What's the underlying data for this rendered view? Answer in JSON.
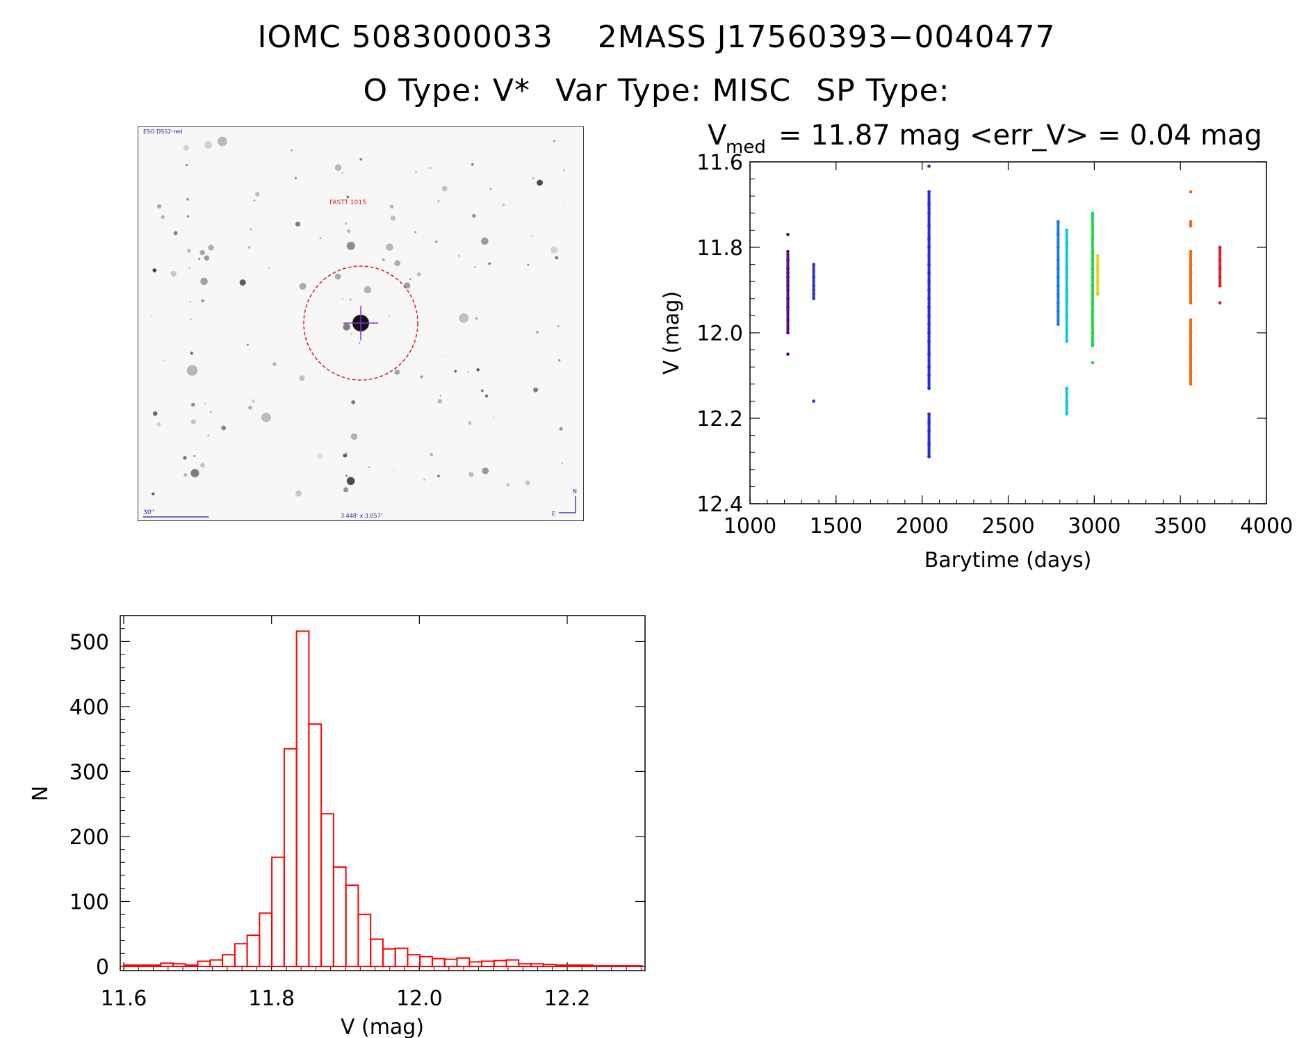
{
  "header": {
    "line1_a": "IOMC 5083000033",
    "line1_b": "2MASS J17560393−0040477",
    "line2_a": "O Type: V*",
    "line2_b": "Var Type: MISC",
    "line2_c": "SP Type:"
  },
  "finder": {
    "survey_label": "ESO DSS2-red",
    "target_label": "FASTT 1015",
    "scale_label": "30\"",
    "fov_label": "3.448' x 3.057'",
    "north_label": "N",
    "east_label": "E",
    "colors": {
      "circle": "#cc2222",
      "crosshair": "#8a2be2",
      "text_blue": "#1a1aa0",
      "text_red": "#cc2222"
    }
  },
  "chart_data": [
    {
      "type": "scatter",
      "title_v": "V",
      "title_sub": "med",
      "title_rest": "= 11.87 mag <err_V> = 0.04 mag",
      "xlabel": "Barytime (days)",
      "ylabel": "V (mag)",
      "xlim": [
        1000,
        4000
      ],
      "ylim": [
        12.4,
        11.6
      ],
      "y_inverted": true,
      "xticks": [
        "1000",
        "1500",
        "2000",
        "2500",
        "3000",
        "3500",
        "4000"
      ],
      "yticks": [
        "11.6",
        "11.8",
        "12.0",
        "12.2",
        "12.4"
      ],
      "series": [
        {
          "color": "#5b0a7a",
          "x": 1220,
          "points": [
            11.77,
            11.81,
            11.83,
            11.85,
            11.86,
            11.87,
            11.88,
            11.89,
            11.9,
            11.92,
            11.94,
            11.97,
            12.0,
            12.05
          ]
        },
        {
          "color": "#3434c8",
          "x": 1370,
          "points": [
            11.84,
            11.87,
            11.89,
            11.9,
            11.91,
            11.92,
            12.16
          ]
        },
        {
          "color": "#1f2fe0",
          "x": 2040,
          "points": [
            11.61,
            11.67,
            11.7,
            11.72,
            11.75,
            11.78,
            11.8,
            11.82,
            11.84,
            11.86,
            11.88,
            11.9,
            11.92,
            11.94,
            11.96,
            11.98,
            12.0,
            12.02,
            12.05,
            12.08,
            12.1,
            12.13,
            12.19,
            12.21,
            12.23,
            12.26,
            12.29
          ]
        },
        {
          "color": "#1e78e8",
          "x": 2790,
          "points": [
            11.74,
            11.77,
            11.8,
            11.83,
            11.85,
            11.87,
            11.89,
            11.91,
            11.93,
            11.95,
            11.98
          ]
        },
        {
          "color": "#12c8e0",
          "x": 2840,
          "points": [
            11.76,
            11.79,
            11.82,
            11.85,
            11.87,
            11.9,
            11.93,
            11.96,
            11.99,
            12.02,
            12.13,
            12.16,
            12.19
          ]
        },
        {
          "color": "#22d84a",
          "x": 2990,
          "points": [
            11.72,
            11.75,
            11.78,
            11.81,
            11.83,
            11.85,
            11.87,
            11.89,
            11.91,
            11.93,
            11.95,
            11.97,
            12.0,
            12.03,
            12.07
          ]
        },
        {
          "color": "#d8d822",
          "x": 3020,
          "points": [
            11.82,
            11.85,
            11.88,
            11.91
          ]
        },
        {
          "color": "#f26a10",
          "x": 3560,
          "points": [
            11.67,
            11.74,
            11.75,
            11.81,
            11.84,
            11.86,
            11.88,
            11.9,
            11.93,
            11.97,
            12.0,
            12.03,
            12.06,
            12.09,
            12.12
          ]
        },
        {
          "color": "#e02020",
          "x": 3730,
          "points": [
            11.8,
            11.83,
            11.85,
            11.87,
            11.89,
            11.93
          ]
        }
      ]
    },
    {
      "type": "bar",
      "xlabel": "V (mag)",
      "ylabel": "N",
      "xlim": [
        11.6,
        12.31
      ],
      "ylim": [
        0,
        540
      ],
      "xticks": [
        "11.6",
        "11.8",
        "12.0",
        "12.2"
      ],
      "yticks": [
        "0",
        "100",
        "200",
        "300",
        "400",
        "500"
      ],
      "bin_width": 0.0167,
      "bin_start": 11.6,
      "color": "#ff0000",
      "values": [
        2,
        2,
        2,
        5,
        4,
        2,
        8,
        10,
        18,
        35,
        48,
        82,
        168,
        335,
        516,
        373,
        235,
        153,
        125,
        80,
        42,
        27,
        28,
        18,
        15,
        12,
        11,
        13,
        7,
        8,
        9,
        10,
        4,
        4,
        3,
        2,
        2,
        2,
        1,
        1,
        1,
        1
      ]
    }
  ]
}
